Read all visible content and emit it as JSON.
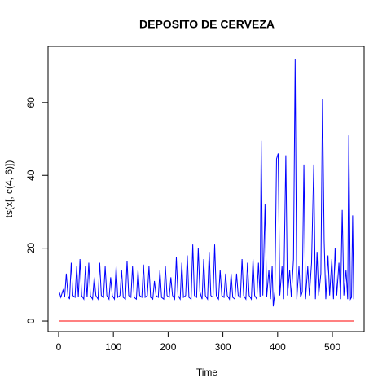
{
  "chart_data": {
    "type": "line",
    "title": "DEPOSITO DE CERVEZA",
    "xlabel": "Time",
    "ylabel": "ts(x[, c(4, 6)])",
    "xlim": [
      -19.3,
      558
    ],
    "xticks": [
      0,
      100,
      200,
      300,
      400,
      500
    ],
    "ylim": [
      -2.9,
      75.4
    ],
    "yticks": [
      0,
      20,
      40,
      60
    ],
    "series": [
      {
        "color": "#0000ff",
        "x": [
          1,
          4,
          8,
          11,
          14,
          17,
          20,
          23,
          26,
          30,
          33,
          36,
          39,
          42,
          46,
          49,
          52,
          55,
          58,
          62,
          65,
          68,
          72,
          75,
          78,
          82,
          85,
          88,
          92,
          95,
          98,
          102,
          105,
          108,
          112,
          115,
          118,
          122,
          125,
          128,
          132,
          135,
          138,
          142,
          145,
          148,
          152,
          155,
          158,
          162,
          165,
          168,
          172,
          175,
          178,
          182,
          185,
          188,
          192,
          195,
          198,
          202,
          205,
          208,
          212,
          215,
          218,
          222,
          225,
          228,
          232,
          235,
          238,
          242,
          245,
          248,
          252,
          255,
          258,
          262,
          265,
          268,
          272,
          275,
          278,
          282,
          285,
          288,
          292,
          295,
          298,
          302,
          305,
          308,
          312,
          315,
          318,
          322,
          325,
          328,
          332,
          335,
          338,
          342,
          345,
          348,
          352,
          355,
          358,
          362,
          365,
          368,
          370,
          373,
          377,
          380,
          384,
          387,
          390,
          392,
          395,
          398,
          401,
          404,
          408,
          411,
          415,
          418,
          422,
          425,
          429,
          432,
          435,
          439,
          442,
          445,
          448,
          451,
          455,
          458,
          462,
          466,
          469,
          472,
          475,
          479,
          482,
          485,
          488,
          492,
          495,
          499,
          502,
          505,
          508,
          512,
          515,
          518,
          521,
          525,
          528,
          530,
          533,
          535,
          537,
          539
        ],
        "values": [
          8,
          6.5,
          8.5,
          6.5,
          13,
          7,
          6,
          16,
          7,
          6.5,
          15,
          6.5,
          17,
          7,
          6,
          15,
          6.5,
          16,
          7,
          6,
          12,
          7,
          6,
          16,
          7,
          6.5,
          15,
          7,
          6,
          12,
          7,
          6,
          15,
          6.5,
          7,
          14,
          6.5,
          6,
          16.5,
          7,
          6.5,
          15,
          6.5,
          6,
          14,
          7,
          6.5,
          15.5,
          6.5,
          7,
          15,
          6.5,
          6,
          11,
          7,
          6.5,
          14,
          6.5,
          6,
          15,
          7,
          6.5,
          12,
          7,
          6,
          17.5,
          7,
          6,
          16,
          6.5,
          7,
          18,
          6.5,
          6,
          21,
          7,
          6.5,
          20,
          8,
          6,
          17,
          7,
          6,
          19,
          7,
          6.5,
          21,
          7,
          6,
          14,
          7,
          6.5,
          13,
          7,
          6,
          13,
          6.5,
          6,
          13,
          7,
          6.5,
          17,
          7,
          6,
          16,
          7,
          6,
          17,
          7,
          6,
          16,
          6.5,
          49.5,
          7,
          32,
          6.5,
          14,
          6,
          15,
          4,
          8,
          44.5,
          46,
          7,
          15,
          6,
          45.5,
          7,
          14,
          6.5,
          17,
          72,
          6,
          15,
          6.5,
          8,
          43,
          6,
          15,
          7,
          16,
          43,
          6,
          19,
          7,
          13,
          61,
          22,
          6,
          18,
          7,
          17,
          6,
          20,
          7,
          16,
          6,
          30.5,
          7,
          14,
          6,
          51,
          6,
          6.5,
          29,
          6
        ]
      },
      {
        "color": "#ff0000",
        "x": [
          1,
          539
        ],
        "values": [
          0,
          0
        ]
      }
    ]
  }
}
